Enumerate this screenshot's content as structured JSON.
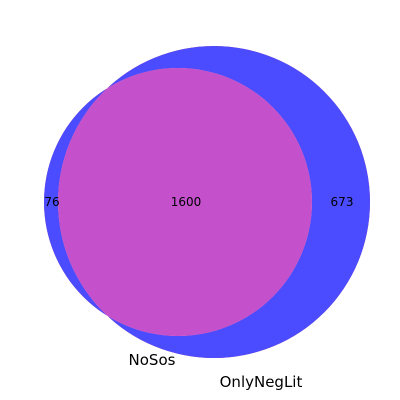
{
  "venn": {
    "sets": [
      {
        "name": "NoSos",
        "color": "#ff0000"
      },
      {
        "name": "OnlyNegLit",
        "color": "#0000ff"
      }
    ],
    "regions": {
      "only_a": 76,
      "both": 1600,
      "only_b": 673
    },
    "region_labels": {
      "only_a": "76",
      "both": "1600",
      "only_b": "673"
    },
    "colors": {
      "only_a": "#ff5050",
      "both": "#c450cc",
      "only_b": "#4b4bff"
    }
  }
}
